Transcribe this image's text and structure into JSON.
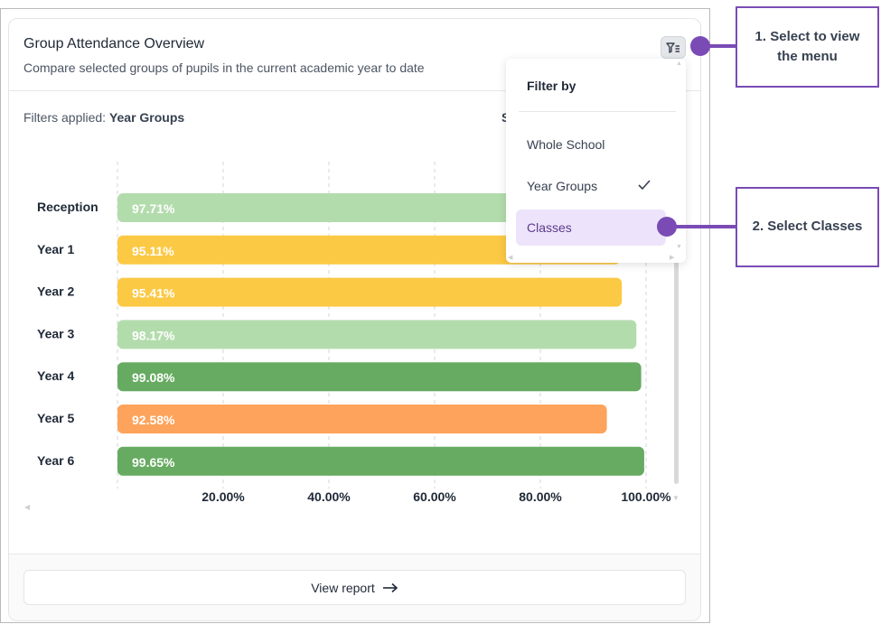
{
  "card": {
    "title": "Group Attendance Overview",
    "subtitle": "Compare selected groups of pupils in the current academic year to date",
    "filters_label": "Filters applied:",
    "filters_value": "Year Groups",
    "partial_text": "S",
    "view_report_label": "View report"
  },
  "icons": {
    "filter_button": "filter-list-icon",
    "view_report_arrow": "arrow-right-icon",
    "checkmark": "check-icon"
  },
  "menu": {
    "title": "Filter by",
    "items": [
      {
        "label": "Whole School",
        "selected": false,
        "highlighted": false
      },
      {
        "label": "Year Groups",
        "selected": true,
        "highlighted": false
      },
      {
        "label": "Classes",
        "selected": false,
        "highlighted": true
      }
    ]
  },
  "callouts": {
    "step1": "1. Select to view the menu",
    "step2": "2. Select Classes"
  },
  "colors": {
    "accent": "#7a4bb5",
    "light_green": "#b3dcad",
    "yellow": "#fcc945",
    "green": "#66ab61",
    "orange": "#fda35b",
    "menu_highlight": "#ede4fb"
  },
  "chart_data": {
    "type": "bar",
    "orientation": "horizontal",
    "categories": [
      "Reception",
      "Year 1",
      "Year 2",
      "Year 3",
      "Year 4",
      "Year 5",
      "Year 6"
    ],
    "values": [
      97.71,
      95.11,
      95.41,
      98.17,
      99.08,
      92.58,
      99.65
    ],
    "data_labels": [
      "97.71%",
      "95.11%",
      "95.41%",
      "98.17%",
      "99.08%",
      "92.58%",
      "99.65%"
    ],
    "bar_colors": [
      "#b3dcad",
      "#fcc945",
      "#fcc945",
      "#b3dcad",
      "#66ab61",
      "#fda35b",
      "#66ab61"
    ],
    "x_ticks": [
      "20.00%",
      "40.00%",
      "60.00%",
      "80.00%",
      "100.00%"
    ],
    "x_tick_values": [
      20,
      40,
      60,
      80,
      100
    ],
    "xlim": [
      0,
      100
    ],
    "grid": "vertical dashed"
  }
}
